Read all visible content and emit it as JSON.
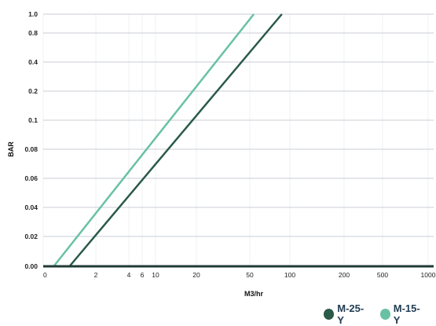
{
  "chart_data": {
    "type": "line",
    "xlabel": "M3/hr",
    "ylabel": "BAR",
    "x_ticks": [
      "0",
      "2",
      "4",
      "6",
      "10",
      "20",
      "50",
      "100",
      "200",
      "500",
      "1000"
    ],
    "y_ticks": [
      "0.00",
      "0.02",
      "0.04",
      "0.06",
      "0.08",
      "0.1",
      "0.2",
      "0.4",
      "0.8",
      "1.0"
    ],
    "grid": true,
    "legend_position": "bottom-right",
    "series": [
      {
        "name": "M-25-Y",
        "color": "#2a5a48",
        "points": [
          [
            1,
            0.0
          ],
          [
            90,
            1.0
          ]
        ]
      },
      {
        "name": "M-15-Y",
        "color": "#68c1a3",
        "points": [
          [
            0.4,
            0.0
          ],
          [
            55,
            1.0
          ]
        ]
      }
    ]
  }
}
